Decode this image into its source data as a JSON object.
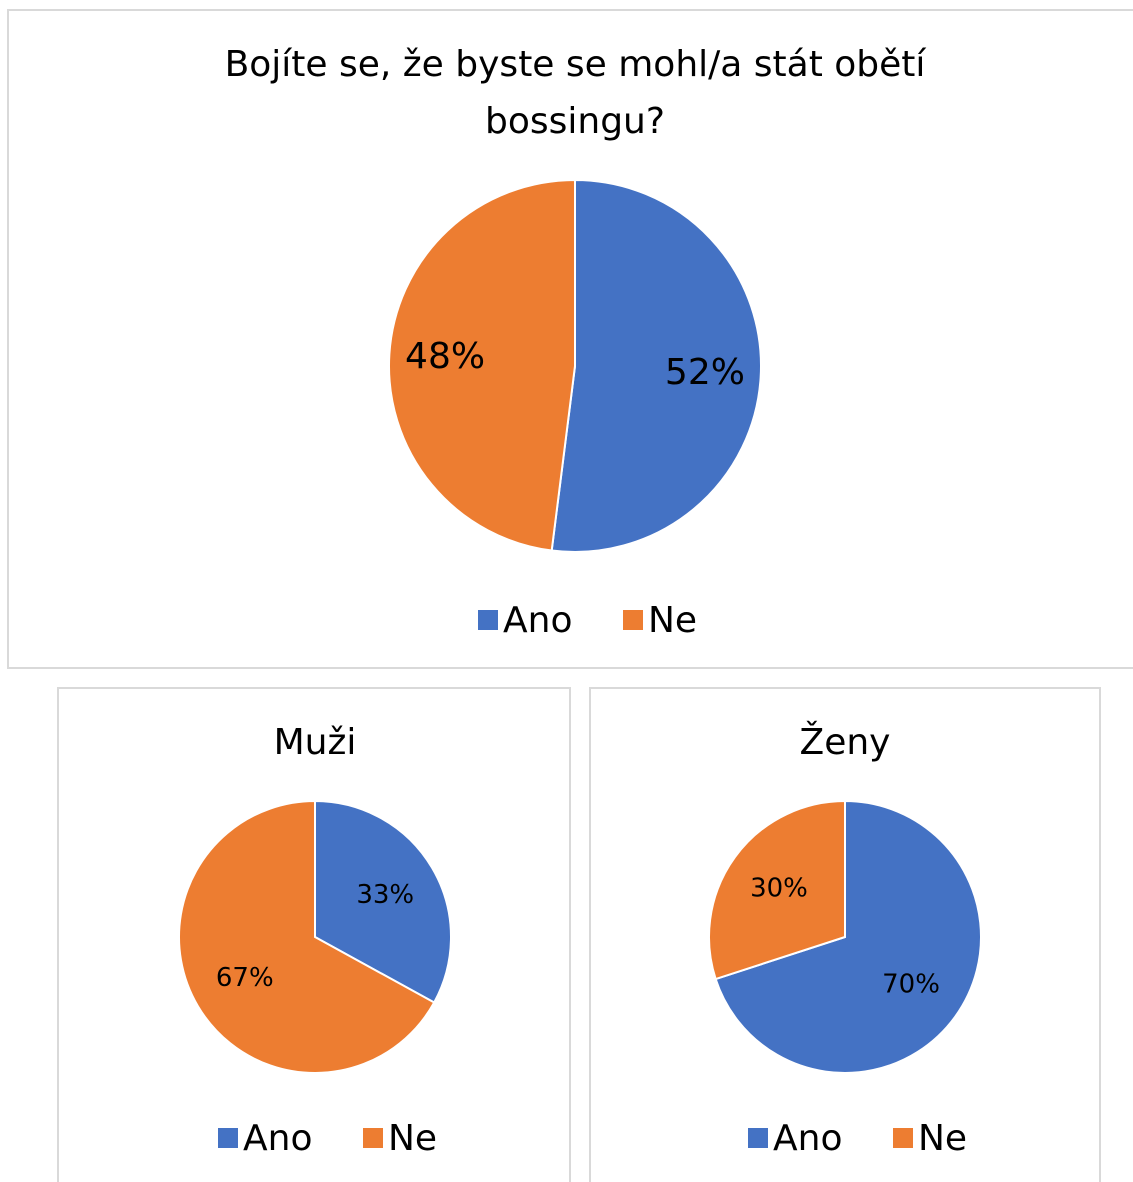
{
  "chart_data": [
    {
      "type": "pie",
      "title": "Bojíte se, že byste se mohl/a stát obětí bossingu?",
      "categories": [
        "Ano",
        "Ne"
      ],
      "values": [
        52,
        48
      ],
      "value_labels": [
        "52%",
        "48%"
      ],
      "colors": [
        "#4472c4",
        "#ed7d31"
      ],
      "legend": "bottom"
    },
    {
      "type": "pie",
      "title": "Muži",
      "categories": [
        "Ano",
        "Ne"
      ],
      "values": [
        33,
        67
      ],
      "value_labels": [
        "33%",
        "67%"
      ],
      "colors": [
        "#4472c4",
        "#ed7d31"
      ],
      "legend": "bottom"
    },
    {
      "type": "pie",
      "title": "Ženy",
      "categories": [
        "Ano",
        "Ne"
      ],
      "values": [
        70,
        30
      ],
      "value_labels": [
        "70%",
        "30%"
      ],
      "colors": [
        "#4472c4",
        "#ed7d31"
      ],
      "legend": "bottom"
    }
  ]
}
